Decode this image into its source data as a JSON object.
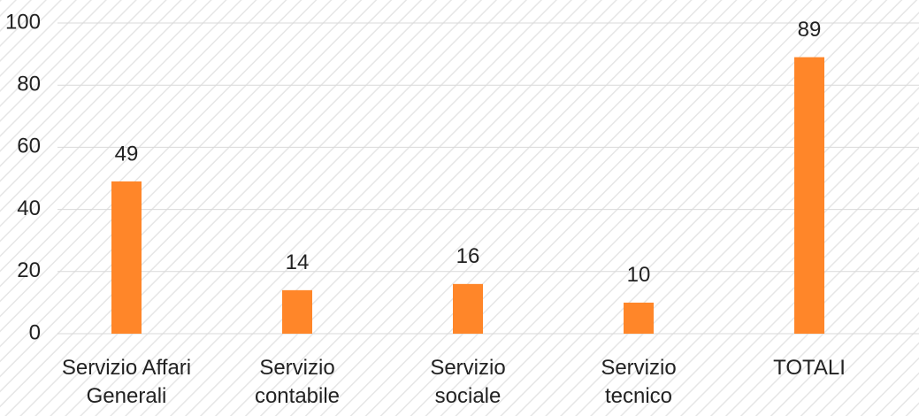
{
  "chart_data": {
    "type": "bar",
    "categories": [
      "Servizio Affari\nGenerali",
      "Servizio\ncontabile",
      "Servizio\nsociale",
      "Servizio\ntecnico",
      "TOTALI"
    ],
    "values": [
      49,
      14,
      16,
      10,
      89
    ],
    "color": "#ff8629",
    "ylim": [
      0,
      100
    ],
    "yticks": [
      0,
      20,
      40,
      60,
      80,
      100
    ],
    "grid": true
  }
}
